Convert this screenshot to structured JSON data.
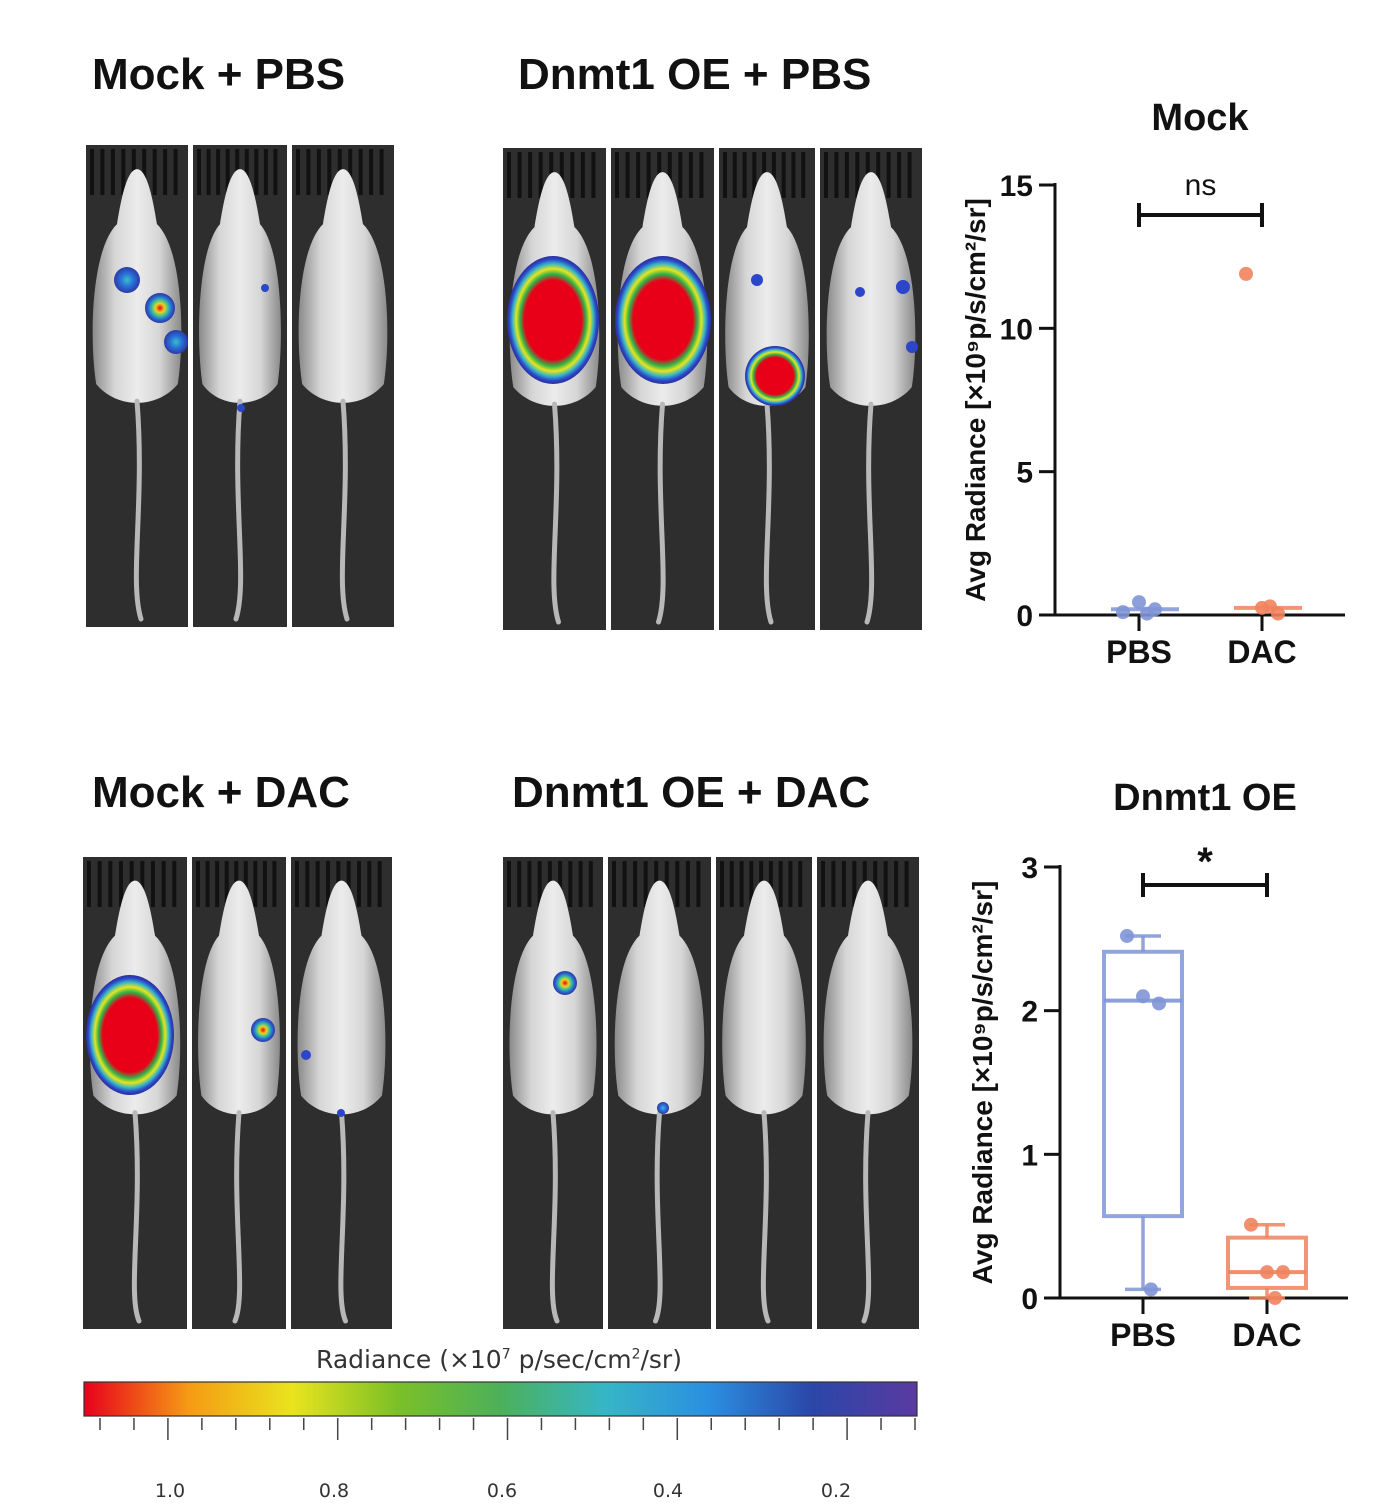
{
  "panels": {
    "mock_pbs": {
      "title": "Mock + PBS",
      "mice": 3
    },
    "oe_pbs": {
      "title": "Dnmt1 OE + PBS",
      "mice": 4
    },
    "mock_dac": {
      "title": "Mock + DAC",
      "mice": 3
    },
    "oe_dac": {
      "title": "Dnmt1 OE + DAC",
      "mice": 4
    }
  },
  "colorbar": {
    "title_prefix": "Radiance (",
    "title_x": "×",
    "title_base": "10",
    "title_exp": "7",
    "title_unit": " p/sec/cm",
    "title_unit_exp": "2",
    "title_suffix": "/sr)",
    "labels": [
      "1.0",
      "0.8",
      "0.6",
      "0.4",
      "0.2"
    ],
    "colors": [
      "#e8001c",
      "#f59a14",
      "#e9e41d",
      "#7cc027",
      "#4cb05a",
      "#36b6c6",
      "#2b8fe0",
      "#2b46a8",
      "#5a3aa0"
    ]
  },
  "colors": {
    "pbs": "#7f95d6",
    "dac": "#f0835e",
    "axis": "#111111"
  },
  "chart_data": [
    {
      "type": "scatter",
      "title": "Mock",
      "ylabel": "Avg Radiance [×10⁹p/s/cm²/sr]",
      "categories": [
        "PBS",
        "DAC"
      ],
      "ylim": [
        0,
        15
      ],
      "yticks": [
        0,
        5,
        10,
        15
      ],
      "series": [
        {
          "name": "PBS",
          "values": [
            0.1,
            0.45,
            0.2,
            0.05
          ],
          "median": 0.2
        },
        {
          "name": "DAC",
          "values": [
            11.9,
            0.25,
            0.05,
            0.3
          ],
          "median": 0.25
        }
      ],
      "significance": "ns"
    },
    {
      "type": "box",
      "title": "Dnmt1 OE",
      "ylabel": "Avg Radiance [×10⁹p/s/cm²/sr]",
      "categories": [
        "PBS",
        "DAC"
      ],
      "ylim": [
        0,
        3
      ],
      "yticks": [
        0,
        1,
        2,
        3
      ],
      "series": [
        {
          "name": "PBS",
          "values": [
            2.52,
            2.1,
            2.05,
            0.06
          ],
          "box": {
            "min": 0.06,
            "q1": 0.57,
            "median": 2.07,
            "q3": 2.41,
            "max": 2.52
          }
        },
        {
          "name": "DAC",
          "values": [
            0.51,
            0.18,
            0.18,
            0.0
          ],
          "box": {
            "min": 0.0,
            "q1": 0.07,
            "median": 0.18,
            "q3": 0.42,
            "max": 0.51
          }
        }
      ],
      "significance": "*"
    }
  ]
}
